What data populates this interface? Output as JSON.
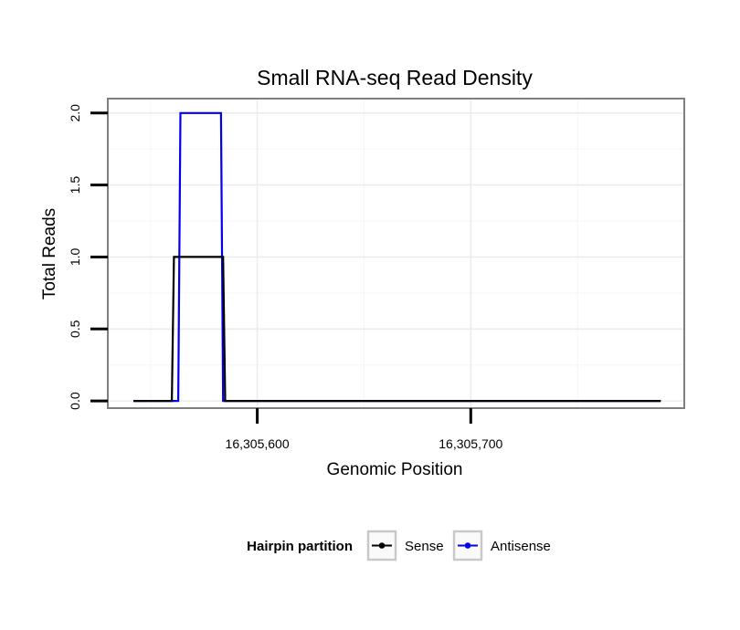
{
  "chart_data": {
    "type": "line",
    "title": "Small RNA-seq Read Density",
    "xlabel": "Genomic Position",
    "ylabel": "Total Reads",
    "xlim": [
      16305530,
      16305800
    ],
    "ylim": [
      -0.05,
      2.1
    ],
    "x_ticks": [
      {
        "value": 16305600,
        "label": "16,305,600"
      },
      {
        "value": 16305700,
        "label": "16,305,700"
      }
    ],
    "y_ticks": [
      {
        "value": 0.0,
        "label": "0.0"
      },
      {
        "value": 0.5,
        "label": "0.5"
      },
      {
        "value": 1.0,
        "label": "1.0"
      },
      {
        "value": 1.5,
        "label": "1.5"
      },
      {
        "value": 2.0,
        "label": "2.0"
      }
    ],
    "grid": true,
    "step_plot": true,
    "series": [
      {
        "name": "Antisense",
        "color": "#0000ee",
        "x": [
          16305542,
          16305563,
          16305564,
          16305583,
          16305584,
          16305789
        ],
        "y": [
          0,
          0,
          2,
          2,
          0,
          0
        ]
      },
      {
        "name": "Sense",
        "color": "#000000",
        "x": [
          16305542,
          16305560,
          16305561,
          16305584,
          16305585,
          16305789
        ],
        "y": [
          0,
          0,
          1,
          1,
          0,
          0
        ]
      }
    ],
    "legend": {
      "title": "Hairpin partition",
      "position": "bottom",
      "entries": [
        {
          "label": "Sense",
          "color": "#000000"
        },
        {
          "label": "Antisense",
          "color": "#0000ee"
        }
      ]
    }
  }
}
